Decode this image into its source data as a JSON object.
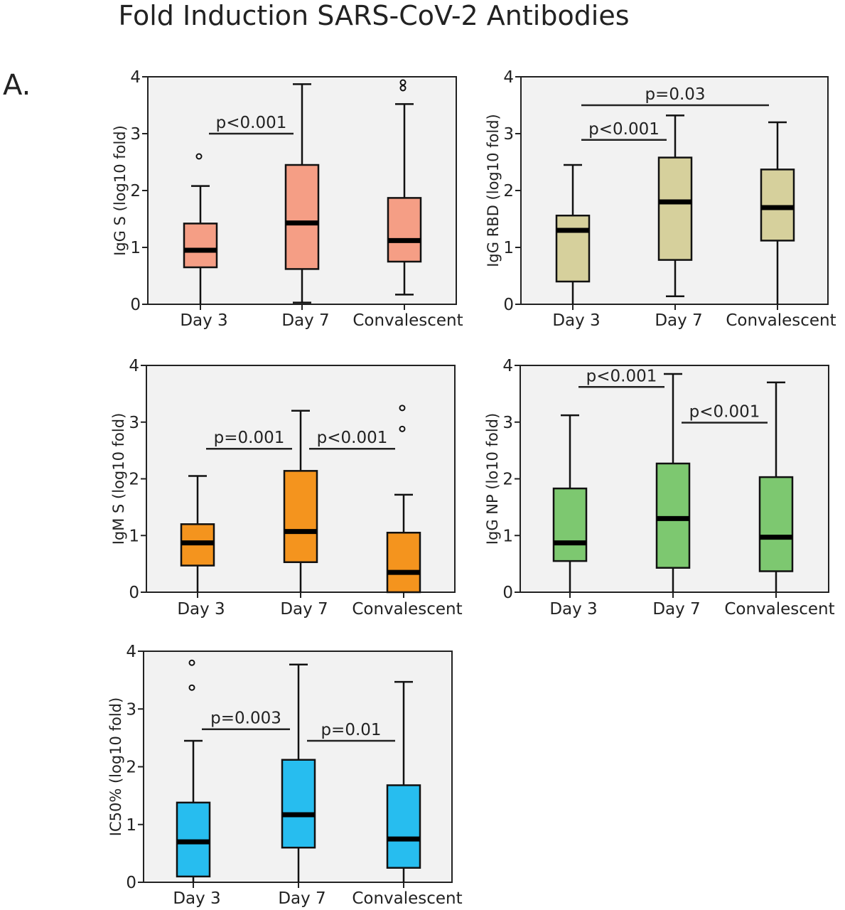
{
  "title": "Fold Induction SARS-CoV-2 Antibodies",
  "panel_label": "A.",
  "chart_data": [
    {
      "type": "box",
      "ylabel": "IgG S (log10 fold)",
      "ylim": [
        0,
        4
      ],
      "yticks": [
        "0",
        "1",
        "2",
        "3",
        "4"
      ],
      "categories": [
        "Day 3",
        "Day 7",
        "Convalescent"
      ],
      "color": "#f59e85",
      "boxes": [
        {
          "min": 0.0,
          "q1": 0.65,
          "median": 0.95,
          "q3": 1.42,
          "max": 2.08,
          "outliers": [
            2.6
          ]
        },
        {
          "min": 0.03,
          "q1": 0.62,
          "median": 1.43,
          "q3": 2.45,
          "max": 3.87,
          "outliers": []
        },
        {
          "min": 0.17,
          "q1": 0.75,
          "median": 1.12,
          "q3": 1.87,
          "max": 3.52,
          "outliers": [
            3.8,
            3.9
          ]
        }
      ],
      "annotations": [
        {
          "label": "p<0.001",
          "from": 0,
          "to": 1,
          "y": 3.0
        }
      ]
    },
    {
      "type": "box",
      "ylabel": "IgG RBD (log10 fold)",
      "ylim": [
        0,
        4
      ],
      "yticks": [
        "0",
        "1",
        "2",
        "3",
        "4"
      ],
      "categories": [
        "Day 3",
        "Day 7",
        "Convalescent"
      ],
      "color": "#d6d09c",
      "boxes": [
        {
          "min": 0.0,
          "q1": 0.4,
          "median": 1.3,
          "q3": 1.56,
          "max": 2.45,
          "outliers": []
        },
        {
          "min": 0.14,
          "q1": 0.78,
          "median": 1.8,
          "q3": 2.58,
          "max": 3.32,
          "outliers": []
        },
        {
          "min": 0.0,
          "q1": 1.12,
          "median": 1.7,
          "q3": 2.37,
          "max": 3.2,
          "outliers": []
        }
      ],
      "annotations": [
        {
          "label": "p<0.001",
          "from": 0,
          "to": 1,
          "y": 2.89
        },
        {
          "label": "p=0.03",
          "from": 0,
          "to": 2,
          "y": 3.5
        }
      ]
    },
    {
      "type": "box",
      "ylabel": "IgM S (log10 fold)",
      "ylim": [
        0,
        4
      ],
      "yticks": [
        "0",
        "1",
        "2",
        "3",
        "4"
      ],
      "categories": [
        "Day 3",
        "Day 7",
        "Convalescent"
      ],
      "color": "#f4941e",
      "boxes": [
        {
          "min": 0.0,
          "q1": 0.47,
          "median": 0.87,
          "q3": 1.2,
          "max": 2.05,
          "outliers": []
        },
        {
          "min": 0.0,
          "q1": 0.53,
          "median": 1.07,
          "q3": 2.14,
          "max": 3.2,
          "outliers": []
        },
        {
          "min": 0.0,
          "q1": 0.0,
          "median": 0.35,
          "q3": 1.05,
          "max": 1.72,
          "outliers": [
            2.88,
            3.25
          ]
        }
      ],
      "annotations": [
        {
          "label": "p=0.001",
          "from": 0,
          "to": 1,
          "y": 2.53
        },
        {
          "label": "p<0.001",
          "from": 1,
          "to": 2,
          "y": 2.53
        }
      ]
    },
    {
      "type": "box",
      "ylabel": "IgG NP (lo10 fold)",
      "ylim": [
        0,
        4
      ],
      "yticks": [
        "0",
        "1",
        "2",
        "3",
        "4"
      ],
      "categories": [
        "Day 3",
        "Day 7",
        "Convalescent"
      ],
      "color": "#7dc870",
      "boxes": [
        {
          "min": 0.0,
          "q1": 0.55,
          "median": 0.87,
          "q3": 1.83,
          "max": 3.12,
          "outliers": []
        },
        {
          "min": 0.0,
          "q1": 0.43,
          "median": 1.3,
          "q3": 2.27,
          "max": 3.85,
          "outliers": []
        },
        {
          "min": 0.0,
          "q1": 0.37,
          "median": 0.97,
          "q3": 2.03,
          "max": 3.7,
          "outliers": []
        }
      ],
      "annotations": [
        {
          "label": "p<0.001",
          "from": 0,
          "to": 1,
          "y": 3.62
        },
        {
          "label": "p<0.001",
          "from": 1,
          "to": 2,
          "y": 2.99
        }
      ]
    },
    {
      "type": "box",
      "ylabel": "IC50% (log10 fold)",
      "ylim": [
        0,
        4
      ],
      "yticks": [
        "0",
        "1",
        "2",
        "3",
        "4"
      ],
      "categories": [
        "Day 3",
        "Day 7",
        "Convalescent"
      ],
      "color": "#27bdef",
      "boxes": [
        {
          "min": 0.0,
          "q1": 0.1,
          "median": 0.7,
          "q3": 1.38,
          "max": 2.45,
          "outliers": [
            3.37,
            3.8
          ]
        },
        {
          "min": 0.0,
          "q1": 0.6,
          "median": 1.17,
          "q3": 2.12,
          "max": 3.77,
          "outliers": []
        },
        {
          "min": 0.0,
          "q1": 0.25,
          "median": 0.75,
          "q3": 1.68,
          "max": 3.47,
          "outliers": []
        }
      ],
      "annotations": [
        {
          "label": "p=0.003",
          "from": 0,
          "to": 1,
          "y": 2.65
        },
        {
          "label": "p=0.01",
          "from": 1,
          "to": 2,
          "y": 2.45
        }
      ]
    }
  ]
}
